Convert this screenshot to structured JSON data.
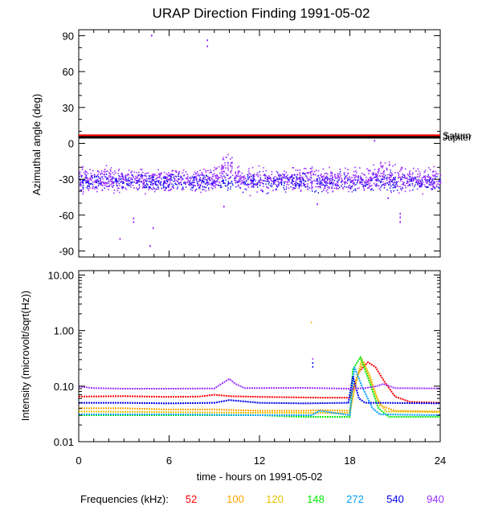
{
  "chart_data": [
    {
      "type": "scatter",
      "title": "URAP Direction Finding  1991-05-02",
      "ylabel": "Azimuthal angle (deg)",
      "xlabel": "",
      "xlim": [
        0,
        24
      ],
      "ylim": [
        -95,
        95
      ],
      "yticks": [
        -90,
        -60,
        -30,
        0,
        30,
        60,
        90
      ],
      "reference_lines": [
        {
          "name": "Saturn",
          "y": 6.5,
          "color": "#ff0000",
          "label": "Saturn"
        },
        {
          "name": "Jupiter",
          "y": 5.0,
          "color": "#000000",
          "label": "Jupiter"
        }
      ],
      "series": [
        {
          "name": "940 kHz",
          "color": "#9b30ff",
          "band_center": -30,
          "band_spread": 8,
          "bumps": [
            {
              "x": 9.9,
              "y": -15
            },
            {
              "x": 20.2,
              "y": -22
            }
          ]
        },
        {
          "name": "540 kHz",
          "color": "#0000ee",
          "band_center": -32,
          "band_spread": 6
        }
      ],
      "outliers": [
        {
          "x": 4.8,
          "y": 91
        },
        {
          "x": 8.5,
          "y": 87
        },
        {
          "x": 8.5,
          "y": 82
        },
        {
          "x": 2.7,
          "y": -79
        },
        {
          "x": 4.7,
          "y": -85
        },
        {
          "x": 3.6,
          "y": -62
        },
        {
          "x": 3.6,
          "y": -65
        },
        {
          "x": 4.9,
          "y": -70
        },
        {
          "x": 21.3,
          "y": -58
        },
        {
          "x": 21.3,
          "y": -61
        },
        {
          "x": 21.3,
          "y": -65
        },
        {
          "x": 9.6,
          "y": -52
        },
        {
          "x": 15.8,
          "y": -50
        },
        {
          "x": 20.5,
          "y": -45
        },
        {
          "x": 19.6,
          "y": 3
        }
      ]
    },
    {
      "type": "line",
      "ylabel": "Intensity (microvolt/sqrt(Hz))",
      "xlabel": "time - hours on 1991-05-02",
      "xlim": [
        0,
        24
      ],
      "ylim": [
        0.01,
        12
      ],
      "yscale": "log",
      "xticks": [
        0,
        6,
        12,
        18,
        24
      ],
      "yticks": [
        0.01,
        0.1,
        1.0,
        10.0
      ],
      "series": [
        {
          "name": "52",
          "color": "#ff0000",
          "x": [
            0,
            3,
            6,
            8,
            9,
            10,
            12,
            16,
            18,
            18.6,
            19.2,
            19.7,
            20.3,
            21,
            22,
            24
          ],
          "y": [
            0.065,
            0.066,
            0.064,
            0.065,
            0.07,
            0.066,
            0.064,
            0.062,
            0.062,
            0.18,
            0.27,
            0.22,
            0.12,
            0.065,
            0.052,
            0.05
          ]
        },
        {
          "name": "100",
          "color": "#ffa500",
          "x": [
            0,
            3,
            6,
            9,
            12,
            15,
            16,
            18,
            18.5,
            18.9,
            19.4,
            20,
            21,
            24
          ],
          "y": [
            0.04,
            0.04,
            0.038,
            0.038,
            0.036,
            0.036,
            0.037,
            0.036,
            0.15,
            0.28,
            0.12,
            0.045,
            0.036,
            0.035
          ]
        },
        {
          "name": "120",
          "color": "#e5c000",
          "x": [
            0,
            6,
            12,
            18,
            18.4,
            18.8,
            19.3,
            19.8,
            20.4,
            24
          ],
          "y": [
            0.035,
            0.034,
            0.033,
            0.033,
            0.12,
            0.3,
            0.16,
            0.06,
            0.035,
            0.034
          ]
        },
        {
          "name": "148",
          "color": "#00ee00",
          "x": [
            0,
            6,
            12,
            15,
            18,
            18.2,
            18.7,
            19.3,
            19.9,
            20.6,
            24
          ],
          "y": [
            0.03,
            0.03,
            0.03,
            0.028,
            0.028,
            0.2,
            0.33,
            0.12,
            0.04,
            0.028,
            0.028
          ]
        },
        {
          "name": "272",
          "color": "#00a0ff",
          "x": [
            0,
            6,
            12,
            15.5,
            16,
            18,
            18.3,
            18.8,
            19.5,
            20,
            24
          ],
          "y": [
            0.031,
            0.031,
            0.03,
            0.03,
            0.036,
            0.03,
            0.22,
            0.1,
            0.04,
            0.031,
            0.03
          ]
        },
        {
          "name": "540",
          "color": "#0000ee",
          "x": [
            0,
            3,
            6,
            9,
            10,
            12,
            15,
            17.9,
            18.2,
            18.6,
            19,
            20,
            24
          ],
          "y": [
            0.05,
            0.05,
            0.049,
            0.05,
            0.056,
            0.05,
            0.049,
            0.05,
            0.15,
            0.06,
            0.05,
            0.05,
            0.049
          ]
        },
        {
          "name": "940",
          "color": "#9b30ff",
          "x": [
            0,
            1,
            3,
            6,
            9,
            9.7,
            10,
            10.4,
            11,
            15,
            18,
            19,
            19.8,
            20.2,
            21,
            24
          ],
          "y": [
            0.098,
            0.092,
            0.09,
            0.09,
            0.091,
            0.12,
            0.135,
            0.11,
            0.092,
            0.093,
            0.09,
            0.092,
            0.1,
            0.11,
            0.092,
            0.091
          ]
        }
      ],
      "spikes": [
        {
          "x": 15.4,
          "y": 1.45,
          "color": "#ffa500"
        },
        {
          "x": 15.5,
          "y": 0.32,
          "color": "#9b30ff"
        },
        {
          "x": 15.5,
          "y": 0.27,
          "color": "#0000ee"
        },
        {
          "x": 15.5,
          "y": 0.23,
          "color": "#0000ee"
        }
      ]
    }
  ],
  "legend": {
    "label": "Frequencies (kHz):",
    "items": [
      {
        "text": "52",
        "color": "#ff0000"
      },
      {
        "text": "100",
        "color": "#ffa500"
      },
      {
        "text": "120",
        "color": "#e5c000"
      },
      {
        "text": "148",
        "color": "#00ee00"
      },
      {
        "text": "272",
        "color": "#00a0ff"
      },
      {
        "text": "540",
        "color": "#0000ee"
      },
      {
        "text": "940",
        "color": "#9b30ff"
      }
    ]
  }
}
